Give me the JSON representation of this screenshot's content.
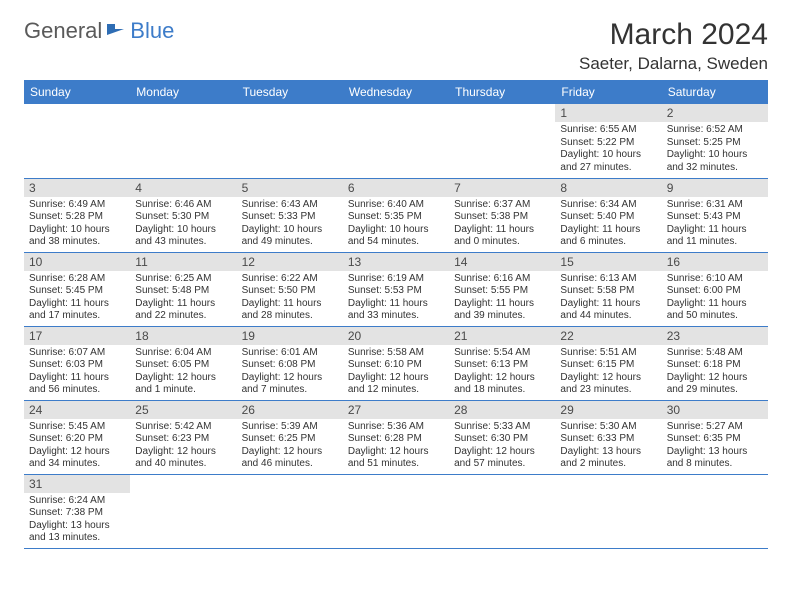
{
  "logo": {
    "general": "General",
    "blue": "Blue"
  },
  "title": "March 2024",
  "location": "Saeter, Dalarna, Sweden",
  "colors": {
    "header_bg": "#3d7cc9",
    "header_fg": "#ffffff",
    "daynum_bg": "#e3e3e3",
    "rule": "#3d7cc9",
    "text": "#333333"
  },
  "weekdays": [
    "Sunday",
    "Monday",
    "Tuesday",
    "Wednesday",
    "Thursday",
    "Friday",
    "Saturday"
  ],
  "weeks": [
    [
      null,
      null,
      null,
      null,
      null,
      {
        "n": "1",
        "sr": "Sunrise: 6:55 AM",
        "ss": "Sunset: 5:22 PM",
        "d1": "Daylight: 10 hours",
        "d2": "and 27 minutes."
      },
      {
        "n": "2",
        "sr": "Sunrise: 6:52 AM",
        "ss": "Sunset: 5:25 PM",
        "d1": "Daylight: 10 hours",
        "d2": "and 32 minutes."
      }
    ],
    [
      {
        "n": "3",
        "sr": "Sunrise: 6:49 AM",
        "ss": "Sunset: 5:28 PM",
        "d1": "Daylight: 10 hours",
        "d2": "and 38 minutes."
      },
      {
        "n": "4",
        "sr": "Sunrise: 6:46 AM",
        "ss": "Sunset: 5:30 PM",
        "d1": "Daylight: 10 hours",
        "d2": "and 43 minutes."
      },
      {
        "n": "5",
        "sr": "Sunrise: 6:43 AM",
        "ss": "Sunset: 5:33 PM",
        "d1": "Daylight: 10 hours",
        "d2": "and 49 minutes."
      },
      {
        "n": "6",
        "sr": "Sunrise: 6:40 AM",
        "ss": "Sunset: 5:35 PM",
        "d1": "Daylight: 10 hours",
        "d2": "and 54 minutes."
      },
      {
        "n": "7",
        "sr": "Sunrise: 6:37 AM",
        "ss": "Sunset: 5:38 PM",
        "d1": "Daylight: 11 hours",
        "d2": "and 0 minutes."
      },
      {
        "n": "8",
        "sr": "Sunrise: 6:34 AM",
        "ss": "Sunset: 5:40 PM",
        "d1": "Daylight: 11 hours",
        "d2": "and 6 minutes."
      },
      {
        "n": "9",
        "sr": "Sunrise: 6:31 AM",
        "ss": "Sunset: 5:43 PM",
        "d1": "Daylight: 11 hours",
        "d2": "and 11 minutes."
      }
    ],
    [
      {
        "n": "10",
        "sr": "Sunrise: 6:28 AM",
        "ss": "Sunset: 5:45 PM",
        "d1": "Daylight: 11 hours",
        "d2": "and 17 minutes."
      },
      {
        "n": "11",
        "sr": "Sunrise: 6:25 AM",
        "ss": "Sunset: 5:48 PM",
        "d1": "Daylight: 11 hours",
        "d2": "and 22 minutes."
      },
      {
        "n": "12",
        "sr": "Sunrise: 6:22 AM",
        "ss": "Sunset: 5:50 PM",
        "d1": "Daylight: 11 hours",
        "d2": "and 28 minutes."
      },
      {
        "n": "13",
        "sr": "Sunrise: 6:19 AM",
        "ss": "Sunset: 5:53 PM",
        "d1": "Daylight: 11 hours",
        "d2": "and 33 minutes."
      },
      {
        "n": "14",
        "sr": "Sunrise: 6:16 AM",
        "ss": "Sunset: 5:55 PM",
        "d1": "Daylight: 11 hours",
        "d2": "and 39 minutes."
      },
      {
        "n": "15",
        "sr": "Sunrise: 6:13 AM",
        "ss": "Sunset: 5:58 PM",
        "d1": "Daylight: 11 hours",
        "d2": "and 44 minutes."
      },
      {
        "n": "16",
        "sr": "Sunrise: 6:10 AM",
        "ss": "Sunset: 6:00 PM",
        "d1": "Daylight: 11 hours",
        "d2": "and 50 minutes."
      }
    ],
    [
      {
        "n": "17",
        "sr": "Sunrise: 6:07 AM",
        "ss": "Sunset: 6:03 PM",
        "d1": "Daylight: 11 hours",
        "d2": "and 56 minutes."
      },
      {
        "n": "18",
        "sr": "Sunrise: 6:04 AM",
        "ss": "Sunset: 6:05 PM",
        "d1": "Daylight: 12 hours",
        "d2": "and 1 minute."
      },
      {
        "n": "19",
        "sr": "Sunrise: 6:01 AM",
        "ss": "Sunset: 6:08 PM",
        "d1": "Daylight: 12 hours",
        "d2": "and 7 minutes."
      },
      {
        "n": "20",
        "sr": "Sunrise: 5:58 AM",
        "ss": "Sunset: 6:10 PM",
        "d1": "Daylight: 12 hours",
        "d2": "and 12 minutes."
      },
      {
        "n": "21",
        "sr": "Sunrise: 5:54 AM",
        "ss": "Sunset: 6:13 PM",
        "d1": "Daylight: 12 hours",
        "d2": "and 18 minutes."
      },
      {
        "n": "22",
        "sr": "Sunrise: 5:51 AM",
        "ss": "Sunset: 6:15 PM",
        "d1": "Daylight: 12 hours",
        "d2": "and 23 minutes."
      },
      {
        "n": "23",
        "sr": "Sunrise: 5:48 AM",
        "ss": "Sunset: 6:18 PM",
        "d1": "Daylight: 12 hours",
        "d2": "and 29 minutes."
      }
    ],
    [
      {
        "n": "24",
        "sr": "Sunrise: 5:45 AM",
        "ss": "Sunset: 6:20 PM",
        "d1": "Daylight: 12 hours",
        "d2": "and 34 minutes."
      },
      {
        "n": "25",
        "sr": "Sunrise: 5:42 AM",
        "ss": "Sunset: 6:23 PM",
        "d1": "Daylight: 12 hours",
        "d2": "and 40 minutes."
      },
      {
        "n": "26",
        "sr": "Sunrise: 5:39 AM",
        "ss": "Sunset: 6:25 PM",
        "d1": "Daylight: 12 hours",
        "d2": "and 46 minutes."
      },
      {
        "n": "27",
        "sr": "Sunrise: 5:36 AM",
        "ss": "Sunset: 6:28 PM",
        "d1": "Daylight: 12 hours",
        "d2": "and 51 minutes."
      },
      {
        "n": "28",
        "sr": "Sunrise: 5:33 AM",
        "ss": "Sunset: 6:30 PM",
        "d1": "Daylight: 12 hours",
        "d2": "and 57 minutes."
      },
      {
        "n": "29",
        "sr": "Sunrise: 5:30 AM",
        "ss": "Sunset: 6:33 PM",
        "d1": "Daylight: 13 hours",
        "d2": "and 2 minutes."
      },
      {
        "n": "30",
        "sr": "Sunrise: 5:27 AM",
        "ss": "Sunset: 6:35 PM",
        "d1": "Daylight: 13 hours",
        "d2": "and 8 minutes."
      }
    ],
    [
      {
        "n": "31",
        "sr": "Sunrise: 6:24 AM",
        "ss": "Sunset: 7:38 PM",
        "d1": "Daylight: 13 hours",
        "d2": "and 13 minutes."
      },
      null,
      null,
      null,
      null,
      null,
      null
    ]
  ]
}
